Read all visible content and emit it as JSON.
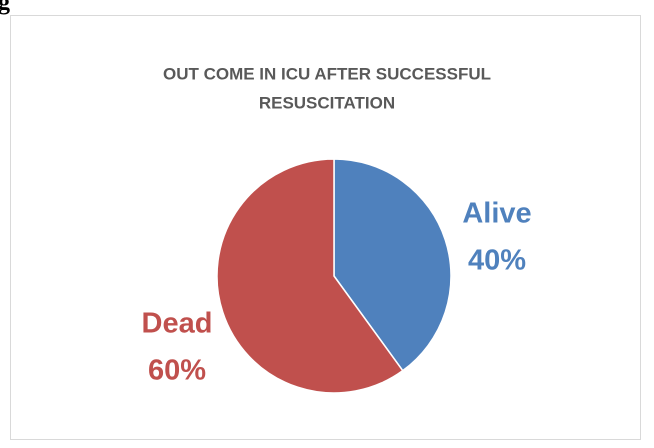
{
  "caption_fragment": "g",
  "chart_data": {
    "type": "pie",
    "title": [
      "OUT COME IN ICU AFTER SUCCESSFUL",
      "RESUSCITATION"
    ],
    "categories": [
      "Alive",
      "Dead"
    ],
    "values": [
      40,
      60
    ],
    "value_labels": [
      "40%",
      "60%"
    ],
    "colors": [
      "#4f81bd",
      "#c0504d"
    ]
  }
}
